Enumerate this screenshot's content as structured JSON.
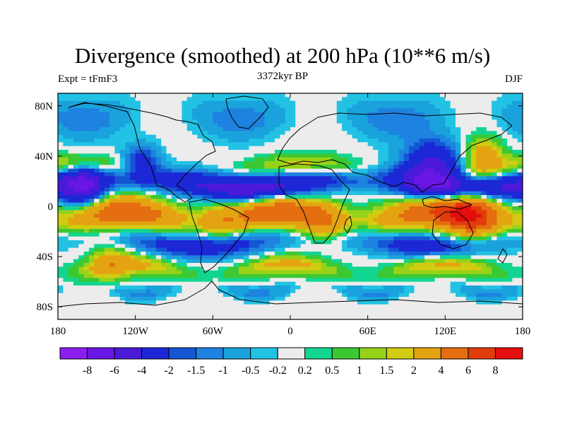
{
  "title": "Divergence (smoothed) at 200 hPa (10**6 m/s)",
  "subtitle_left": "Expt = tFmF3",
  "subtitle_center": "3372kyr BP",
  "subtitle_right": "DJF",
  "chart_data": {
    "type": "heatmap",
    "variable": "Divergence (smoothed) at 200 hPa",
    "units": "10**6 m/s",
    "projection": "cylindrical equidistant",
    "lon_range": [
      -180,
      180
    ],
    "lat_range": [
      -90,
      90
    ],
    "x_ticks": [
      {
        "value": -180,
        "label": "180"
      },
      {
        "value": -120,
        "label": "120W"
      },
      {
        "value": -60,
        "label": "60W"
      },
      {
        "value": 0,
        "label": "0"
      },
      {
        "value": 60,
        "label": "60E"
      },
      {
        "value": 120,
        "label": "120E"
      },
      {
        "value": 180,
        "label": "180"
      }
    ],
    "y_ticks": [
      {
        "value": 80,
        "label": "80N"
      },
      {
        "value": 40,
        "label": "40N"
      },
      {
        "value": 0,
        "label": "0"
      },
      {
        "value": -40,
        "label": "40S"
      },
      {
        "value": -80,
        "label": "80S"
      }
    ],
    "colorbar": {
      "colors": [
        "#8a1ef0",
        "#6a16e6",
        "#4a1ad8",
        "#1c28d6",
        "#1456d4",
        "#1e82e0",
        "#1aa2dc",
        "#22c2e4",
        "#ececec",
        "#12d690",
        "#3cc832",
        "#96d218",
        "#d2cc12",
        "#e4a412",
        "#e46e10",
        "#e23c0c",
        "#e40e0e"
      ],
      "boundaries": [
        "-8",
        "-6",
        "-4",
        "-2",
        "-1.5",
        "-1",
        "-0.5",
        "-0.2",
        "0.2",
        "0.5",
        "1",
        "1.5",
        "2",
        "4",
        "6",
        "8"
      ]
    },
    "bands": [
      {
        "lat_center": 72,
        "halfwidth": 16,
        "amplitude": -0.7,
        "wave_amp": 0.7,
        "wave_k": 3,
        "phase": 0.5
      },
      {
        "lat_center": 30,
        "halfwidth": 8,
        "amplitude": 0.8,
        "wave_amp": 1.0,
        "wave_k": 2,
        "phase": 1.2
      },
      {
        "lat_center": 18,
        "halfwidth": 10,
        "amplitude": -3.5,
        "wave_amp": 1.8,
        "wave_k": 2,
        "phase": -0.4
      },
      {
        "lat_center": -8,
        "halfwidth": 12,
        "amplitude": 3.8,
        "wave_amp": 2.2,
        "wave_k": 3,
        "phase": 2.0
      },
      {
        "lat_center": -28,
        "halfwidth": 10,
        "amplitude": -1.8,
        "wave_amp": 1.2,
        "wave_k": 2,
        "phase": 0.8
      },
      {
        "lat_center": -50,
        "halfwidth": 8,
        "amplitude": 1.4,
        "wave_amp": 1.0,
        "wave_k": 3,
        "phase": 1.7
      },
      {
        "lat_center": -66,
        "halfwidth": 6,
        "amplitude": -0.6,
        "wave_amp": 0.6,
        "wave_k": 4,
        "phase": 0.2
      }
    ],
    "spots": [
      {
        "lon": 140,
        "lat": -5,
        "radius": 22,
        "value": 5.5
      },
      {
        "lon": 25,
        "lat": -12,
        "radius": 15,
        "value": 2.2
      },
      {
        "lon": -55,
        "lat": -12,
        "radius": 14,
        "value": 1.8
      },
      {
        "lon": 110,
        "lat": 28,
        "radius": 22,
        "value": -5.0
      },
      {
        "lon": -115,
        "lat": 35,
        "radius": 14,
        "value": -2.5
      },
      {
        "lon": -140,
        "lat": -45,
        "radius": 15,
        "value": 2.0
      },
      {
        "lon": 150,
        "lat": 40,
        "radius": 14,
        "value": 3.0
      },
      {
        "lon": -160,
        "lat": 15,
        "radius": 16,
        "value": -4.5
      }
    ]
  }
}
